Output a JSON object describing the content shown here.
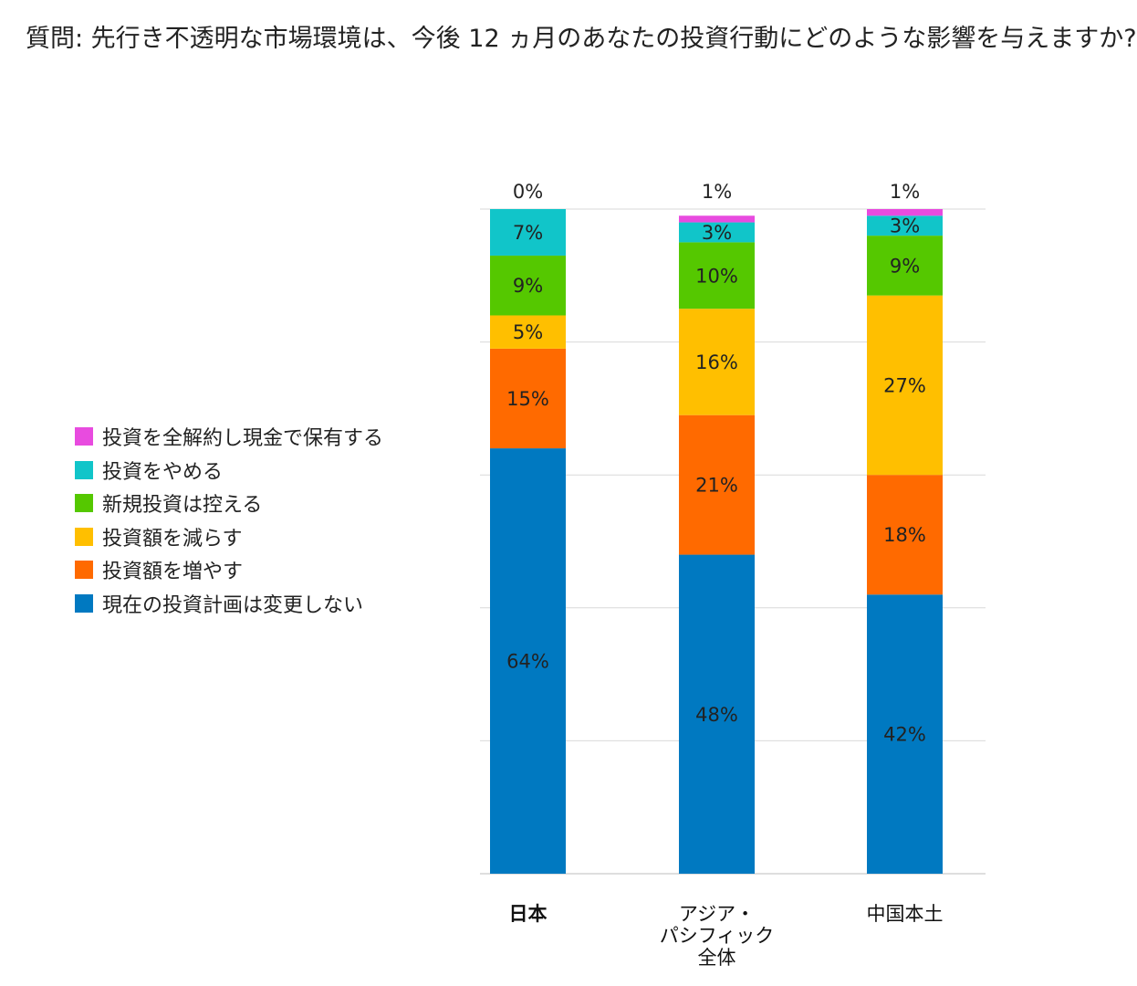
{
  "title": "質問: 先行き不透明な市場環境は、今後 12 ヵ月のあなたの投資行動にどのような影響を与えますか?",
  "chart_data": {
    "type": "bar",
    "stacked": true,
    "categories": [
      {
        "lines": [
          "日本"
        ],
        "bold": true
      },
      {
        "lines": [
          "アジア・",
          "パシフィック",
          "全体"
        ],
        "bold": false
      },
      {
        "lines": [
          "中国本土"
        ],
        "bold": false
      }
    ],
    "series": [
      {
        "name": "現在の投資計画は変更しない",
        "color": "#0079C1",
        "values": [
          64,
          48,
          42
        ]
      },
      {
        "name": "投資額を増やす",
        "color": "#FF6A00",
        "values": [
          15,
          21,
          18
        ]
      },
      {
        "name": "投資額を減らす",
        "color": "#FFBF00",
        "values": [
          5,
          16,
          27
        ]
      },
      {
        "name": "新規投資は控える",
        "color": "#55C800",
        "values": [
          9,
          10,
          9
        ]
      },
      {
        "name": "投資をやめる",
        "color": "#11C5C9",
        "values": [
          7,
          3,
          3
        ]
      },
      {
        "name": "投資を全解約し現金で保有する",
        "color": "#E84BDF",
        "values": [
          0,
          1,
          1
        ]
      }
    ],
    "ylim": [
      0,
      100
    ],
    "grid": true,
    "legend": "left",
    "legend_order": [
      5,
      4,
      3,
      2,
      1,
      0
    ],
    "top_label_series": 5
  }
}
